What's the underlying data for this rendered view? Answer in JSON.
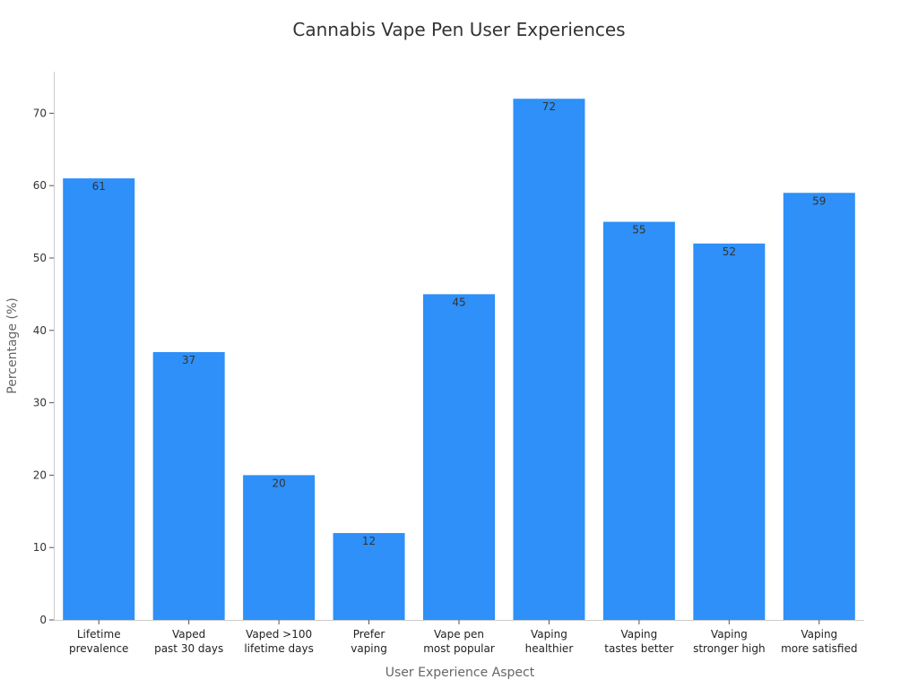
{
  "chart_data": {
    "type": "bar",
    "title": "Cannabis Vape Pen User Experiences",
    "xlabel": "User Experience Aspect",
    "ylabel": "Percentage (%)",
    "categories": [
      [
        "Lifetime",
        "prevalence"
      ],
      [
        "Vaped",
        "past 30 days"
      ],
      [
        "Vaped >100",
        "lifetime days"
      ],
      [
        "Prefer",
        "vaping"
      ],
      [
        "Vape pen",
        "most popular"
      ],
      [
        "Vaping",
        "healthier"
      ],
      [
        "Vaping",
        "tastes better"
      ],
      [
        "Vaping",
        "stronger high"
      ],
      [
        "Vaping",
        "more satisfied"
      ]
    ],
    "values": [
      61,
      37,
      20,
      12,
      45,
      72,
      55,
      52,
      59
    ],
    "ylim": [
      0,
      75.6
    ],
    "yticks": [
      0,
      10,
      20,
      30,
      40,
      50,
      60,
      70
    ],
    "bar_color": "#2E90F8",
    "grid": false,
    "legend": "none"
  }
}
